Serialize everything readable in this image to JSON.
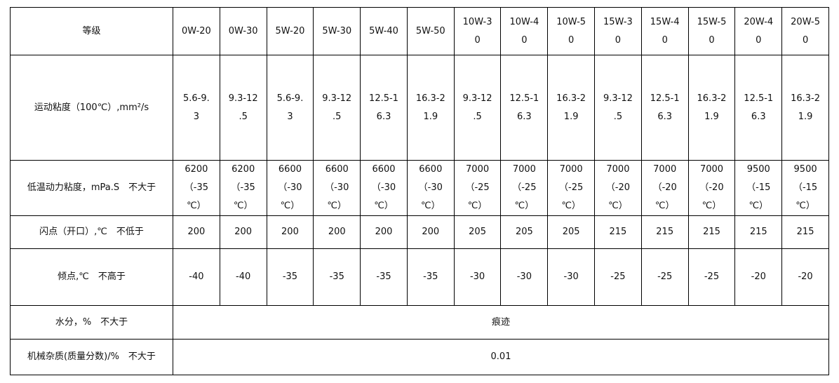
{
  "table": {
    "header": {
      "label": "等级",
      "grades": [
        "0W-20",
        "0W-30",
        "5W-20",
        "5W-30",
        "5W-40",
        "5W-50",
        "10W-3\n0",
        "10W-4\n0",
        "10W-5\n0",
        "15W-3\n0",
        "15W-4\n0",
        "15W-5\n0",
        "20W-4\n0",
        "20W-5\n0"
      ]
    },
    "rows": [
      {
        "label": "运动粘度（100℃）,mm²/s",
        "values": [
          "5.6-9.\n3",
          "9.3-12\n.5",
          "5.6-9.\n3",
          "9.3-12\n.5",
          "12.5-1\n6.3",
          "16.3-2\n1.9",
          "9.3-12\n.5",
          "12.5-1\n6.3",
          "16.3-2\n1.9",
          "9.3-12\n.5",
          "12.5-1\n6.3",
          "16.3-2\n1.9",
          "12.5-1\n6.3",
          "16.3-2\n1.9"
        ]
      },
      {
        "label": "低温动力粘度，mPa.S　不大于",
        "values": [
          "6200\n（-35\n℃）",
          "6200\n（-35\n℃）",
          "6600\n（-30\n℃）",
          "6600\n（-30\n℃）",
          "6600\n（-30\n℃）",
          "6600\n（-30\n℃）",
          "7000\n（-25\n℃）",
          "7000\n（-25\n℃）",
          "7000\n（-25\n℃）",
          "7000\n（-20\n℃）",
          "7000\n（-20\n℃）",
          "7000\n（-20\n℃）",
          "9500\n（-15\n℃）",
          "9500\n（-15\n℃）"
        ]
      },
      {
        "label": "闪点（开口）,℃　不低于",
        "values": [
          "200",
          "200",
          "200",
          "200",
          "200",
          "200",
          "205",
          "205",
          "205",
          "215",
          "215",
          "215",
          "215",
          "215"
        ]
      },
      {
        "label": "倾点,℃　不高于",
        "values": [
          "-40",
          "-40",
          "-35",
          "-35",
          "-35",
          "-35",
          "-30",
          "-30",
          "-30",
          "-25",
          "-25",
          "-25",
          "-20",
          "-20"
        ]
      }
    ],
    "merged_rows": [
      {
        "label": "水分，%　不大于",
        "value": "痕迹"
      },
      {
        "label": "机械杂质(质量分数)/%　不大于",
        "value": "0.01"
      }
    ]
  }
}
